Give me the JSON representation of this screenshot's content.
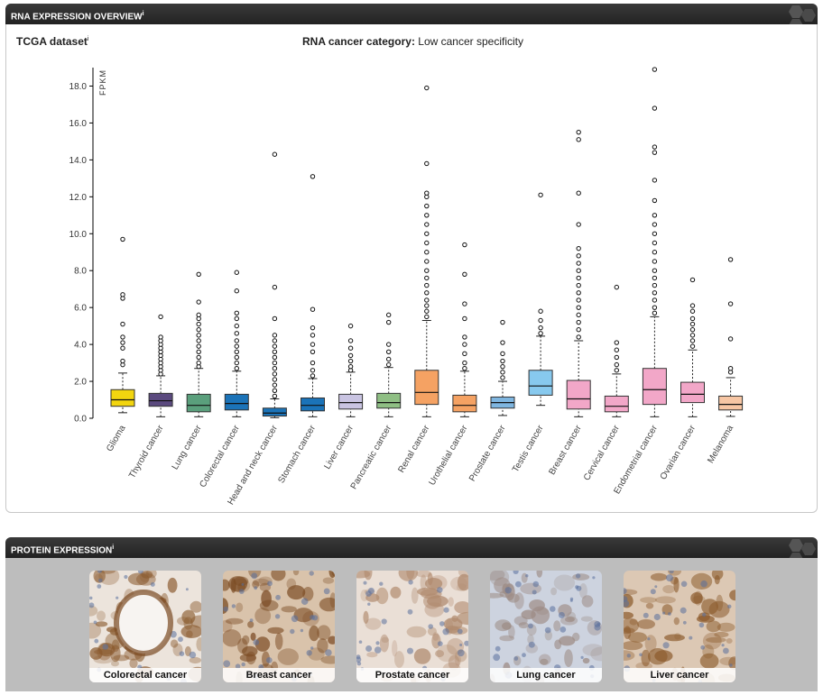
{
  "rna_section": {
    "header": "RNA EXPRESSION OVERVIEW",
    "header_sup": "i",
    "dataset_label": "TCGA dataset",
    "dataset_sup": "i",
    "category_label": "RNA cancer category:",
    "category_value": "Low cancer specificity"
  },
  "protein_section": {
    "header": "PROTEIN EXPRESSION",
    "header_sup": "i",
    "tissues": [
      {
        "label": "Colorectal cancer",
        "base": "#ece4dc",
        "stain": "#8a5a2e"
      },
      {
        "label": "Breast cancer",
        "base": "#d9c3ab",
        "stain": "#7a4a22"
      },
      {
        "label": "Prostate cancer",
        "base": "#eadfd6",
        "stain": "#b08a6e"
      },
      {
        "label": "Lung cancer",
        "base": "#cdd3df",
        "stain": "#9c8b84"
      },
      {
        "label": "Liver cancer",
        "base": "#dcc8b4",
        "stain": "#8b5a2b"
      }
    ]
  },
  "chart_data": {
    "type": "box",
    "ylabel": "FPKM",
    "ylim": [
      0,
      19
    ],
    "yticks": [
      "0.0",
      "2.0",
      "4.0",
      "6.0",
      "8.0",
      "10.0",
      "12.0",
      "14.0",
      "16.0",
      "18.0"
    ],
    "categories": [
      {
        "name": "Glioma",
        "color": "#f2d50f",
        "min": 0.3,
        "q1": 0.65,
        "median": 1.0,
        "q3": 1.55,
        "max": 2.45,
        "outliers": [
          2.9,
          3.1,
          3.8,
          4.1,
          4.4,
          5.1,
          6.5,
          6.7,
          9.7
        ]
      },
      {
        "name": "Thyroid cancer",
        "color": "#5b4a7f",
        "min": 0.08,
        "q1": 0.65,
        "median": 0.95,
        "q3": 1.35,
        "max": 2.3,
        "outliers": [
          2.4,
          2.6,
          2.8,
          3.0,
          3.2,
          3.4,
          3.6,
          3.8,
          4.0,
          4.2,
          4.4,
          5.5
        ]
      },
      {
        "name": "Lung cancer",
        "color": "#5a9f7c",
        "min": 0.08,
        "q1": 0.35,
        "median": 0.7,
        "q3": 1.3,
        "max": 2.7,
        "outliers": [
          2.8,
          3.0,
          3.3,
          3.6,
          3.9,
          4.2,
          4.5,
          4.8,
          5.1,
          5.4,
          5.6,
          6.3,
          7.8
        ]
      },
      {
        "name": "Colorectal cancer",
        "color": "#1b73b8",
        "min": 0.08,
        "q1": 0.45,
        "median": 0.8,
        "q3": 1.3,
        "max": 2.55,
        "outliers": [
          2.7,
          3.0,
          3.3,
          3.6,
          3.9,
          4.2,
          4.6,
          5.0,
          5.4,
          5.7,
          6.9,
          7.9
        ]
      },
      {
        "name": "Head and neck cancer",
        "color": "#1b73b8",
        "min": 0.03,
        "q1": 0.12,
        "median": 0.28,
        "q3": 0.55,
        "max": 1.05,
        "outliers": [
          1.2,
          1.5,
          1.8,
          2.1,
          2.4,
          2.7,
          3.0,
          3.3,
          3.6,
          3.9,
          4.2,
          4.5,
          5.4,
          7.1,
          14.3
        ]
      },
      {
        "name": "Stomach cancer",
        "color": "#1b73b8",
        "min": 0.08,
        "q1": 0.4,
        "median": 0.7,
        "q3": 1.1,
        "max": 2.15,
        "outliers": [
          2.3,
          2.6,
          3.0,
          3.6,
          4.0,
          4.5,
          4.9,
          5.9,
          13.1
        ]
      },
      {
        "name": "Liver cancer",
        "color": "#c9c4e2",
        "min": 0.08,
        "q1": 0.5,
        "median": 0.85,
        "q3": 1.3,
        "max": 2.5,
        "outliers": [
          2.6,
          2.8,
          3.1,
          3.4,
          3.8,
          4.2,
          5.0
        ]
      },
      {
        "name": "Pancreatic cancer",
        "color": "#8fbf84",
        "min": 0.08,
        "q1": 0.55,
        "median": 0.85,
        "q3": 1.35,
        "max": 2.75,
        "outliers": [
          2.9,
          3.2,
          3.6,
          4.0,
          5.2,
          5.6
        ]
      },
      {
        "name": "Renal cancer",
        "color": "#f5a263",
        "min": 0.08,
        "q1": 0.75,
        "median": 1.4,
        "q3": 2.6,
        "max": 5.3,
        "outliers": [
          5.5,
          5.8,
          6.1,
          6.4,
          6.8,
          7.2,
          7.6,
          8.0,
          8.5,
          9.0,
          9.5,
          10.0,
          10.5,
          11.0,
          11.5,
          12.0,
          12.2,
          13.8,
          17.9
        ]
      },
      {
        "name": "Urothelial cancer",
        "color": "#f5a263",
        "min": 0.08,
        "q1": 0.35,
        "median": 0.7,
        "q3": 1.25,
        "max": 2.55,
        "outliers": [
          2.7,
          3.0,
          3.5,
          4.0,
          4.4,
          5.4,
          6.2,
          7.8,
          9.4
        ]
      },
      {
        "name": "Prostate cancer",
        "color": "#7fb6e0",
        "min": 0.15,
        "q1": 0.55,
        "median": 0.85,
        "q3": 1.15,
        "max": 2.0,
        "outliers": [
          2.2,
          2.5,
          2.8,
          3.1,
          3.5,
          4.1,
          5.2
        ]
      },
      {
        "name": "Testis cancer",
        "color": "#87c9ee",
        "min": 0.7,
        "q1": 1.25,
        "median": 1.75,
        "q3": 2.6,
        "max": 4.45,
        "outliers": [
          4.6,
          4.9,
          5.3,
          5.8,
          12.1
        ]
      },
      {
        "name": "Breast cancer",
        "color": "#f2a7c8",
        "min": 0.08,
        "q1": 0.5,
        "median": 1.05,
        "q3": 2.05,
        "max": 4.2,
        "outliers": [
          4.4,
          4.8,
          5.2,
          5.6,
          6.0,
          6.4,
          6.8,
          7.2,
          7.6,
          8.0,
          8.4,
          8.8,
          9.2,
          10.5,
          12.2,
          15.1,
          15.5
        ]
      },
      {
        "name": "Cervical cancer",
        "color": "#f2a7c8",
        "min": 0.08,
        "q1": 0.35,
        "median": 0.65,
        "q3": 1.2,
        "max": 2.4,
        "outliers": [
          2.6,
          2.9,
          3.3,
          3.7,
          4.1,
          7.1
        ]
      },
      {
        "name": "Endometrial cancer",
        "color": "#f2a7c8",
        "min": 0.08,
        "q1": 0.75,
        "median": 1.55,
        "q3": 2.7,
        "max": 5.5,
        "outliers": [
          5.7,
          6.0,
          6.4,
          6.8,
          7.2,
          7.6,
          8.0,
          8.5,
          9.0,
          9.5,
          10.0,
          10.5,
          11.0,
          11.8,
          12.9,
          14.4,
          14.7,
          16.8,
          18.9
        ]
      },
      {
        "name": "Ovarian cancer",
        "color": "#f2a7c8",
        "min": 0.08,
        "q1": 0.85,
        "median": 1.3,
        "q3": 1.95,
        "max": 3.7,
        "outliers": [
          3.9,
          4.2,
          4.5,
          4.8,
          5.1,
          5.4,
          5.8,
          6.1,
          7.5
        ]
      },
      {
        "name": "Melanoma",
        "color": "#f7c6a4",
        "min": 0.1,
        "q1": 0.45,
        "median": 0.75,
        "q3": 1.2,
        "max": 2.2,
        "outliers": [
          2.5,
          2.7,
          4.3,
          6.2,
          8.6
        ]
      }
    ]
  }
}
